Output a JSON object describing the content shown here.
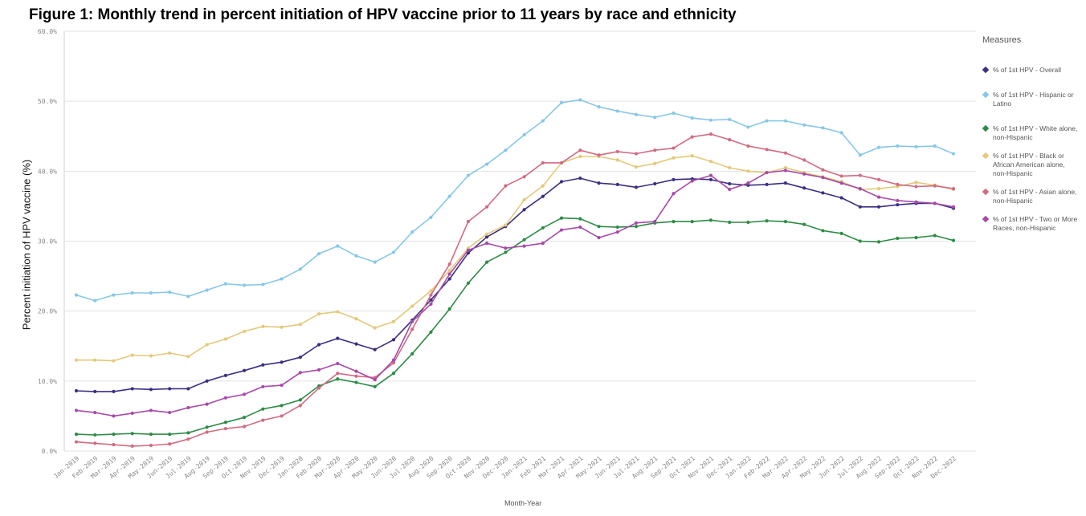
{
  "title": "Figure 1: Monthly trend in percent initiation of HPV vaccine prior to 11 years by race and ethnicity",
  "chart_data": {
    "type": "line",
    "title": "Figure 1: Monthly trend in percent initiation of HPV vaccine prior to 11 years by race and ethnicity",
    "xlabel": "Month-Year",
    "ylabel": "Percent initiation of HPV vaccine (%)",
    "ylim": [
      0,
      60
    ],
    "yticks": [
      "0.0%",
      "10.0%",
      "20.0%",
      "30.0%",
      "40.0%",
      "50.0%",
      "60.0%"
    ],
    "grid": true,
    "legend_title": "Measures",
    "legend_position": "right",
    "x": [
      "Jan-2019",
      "Feb-2019",
      "Mar-2019",
      "Apr-2019",
      "May-2019",
      "Jun-2019",
      "Jul-2019",
      "Aug-2019",
      "Sep-2019",
      "Oct-2019",
      "Nov-2019",
      "Dec-2019",
      "Jan-2020",
      "Feb-2020",
      "Mar-2020",
      "Apr-2020",
      "May-2020",
      "Jun-2020",
      "Jul-2020",
      "Aug-2020",
      "Sep-2020",
      "Oct-2020",
      "Nov-2020",
      "Dec-2020",
      "Jan-2021",
      "Feb-2021",
      "Mar-2021",
      "Apr-2021",
      "May-2021",
      "Jun-2021",
      "Jul-2021",
      "Aug-2021",
      "Sep-2021",
      "Oct-2021",
      "Nov-2021",
      "Dec-2021",
      "Jan-2022",
      "Feb-2022",
      "Mar-2022",
      "Apr-2022",
      "May-2022",
      "Jun-2022",
      "Jul-2022",
      "Aug-2022",
      "Sep-2022",
      "Oct-2022",
      "Nov-2022",
      "Dec-2022"
    ],
    "series": [
      {
        "name": "% of 1st HPV - Overall",
        "color": "#3b2f82",
        "values": [
          8.6,
          8.5,
          8.5,
          8.9,
          8.8,
          8.9,
          8.9,
          10.0,
          10.8,
          11.5,
          12.3,
          12.7,
          13.4,
          15.2,
          16.1,
          15.3,
          14.5,
          15.9,
          18.7,
          21.6,
          24.6,
          28.3,
          30.6,
          32.1,
          34.5,
          36.4,
          38.5,
          39.0,
          38.3,
          38.1,
          37.7,
          38.2,
          38.8,
          38.9,
          38.8,
          38.2,
          38.0,
          38.1,
          38.3,
          37.6,
          36.9,
          36.2,
          34.9,
          34.9,
          35.2,
          35.4,
          35.4,
          34.7
        ]
      },
      {
        "name": "% of 1st HPV - Hispanic or Latino",
        "color": "#87c7e8",
        "values": [
          22.3,
          21.5,
          22.3,
          22.6,
          22.6,
          22.7,
          22.1,
          23.0,
          23.9,
          23.7,
          23.8,
          24.6,
          26.0,
          28.2,
          29.3,
          27.9,
          27.0,
          28.4,
          31.3,
          33.4,
          36.4,
          39.4,
          41.0,
          43.0,
          45.2,
          47.2,
          49.8,
          50.2,
          49.2,
          48.6,
          48.1,
          47.7,
          48.3,
          47.6,
          47.3,
          47.4,
          46.3,
          47.2,
          47.2,
          46.6,
          46.2,
          45.5,
          42.3,
          43.4,
          43.6,
          43.5,
          43.6,
          42.5
        ]
      },
      {
        "name": "% of 1st HPV - White alone, non-Hispanic",
        "color": "#2e8b46",
        "values": [
          2.4,
          2.3,
          2.4,
          2.5,
          2.4,
          2.4,
          2.6,
          3.4,
          4.1,
          4.8,
          6.0,
          6.5,
          7.3,
          9.3,
          10.3,
          9.8,
          9.2,
          11.1,
          13.9,
          17.0,
          20.3,
          24.0,
          27.0,
          28.4,
          30.2,
          31.9,
          33.3,
          33.2,
          32.1,
          32.0,
          32.1,
          32.6,
          32.8,
          32.8,
          33.0,
          32.7,
          32.7,
          32.9,
          32.8,
          32.4,
          31.5,
          31.1,
          30.0,
          29.9,
          30.4,
          30.5,
          30.8,
          30.1
        ]
      },
      {
        "name": "% of 1st HPV - Black or African American alone, non-Hispanic",
        "color": "#e3c97a",
        "values": [
          13.0,
          13.0,
          12.9,
          13.7,
          13.6,
          14.0,
          13.5,
          15.2,
          16.0,
          17.1,
          17.8,
          17.7,
          18.1,
          19.6,
          19.9,
          18.9,
          17.6,
          18.5,
          20.7,
          22.9,
          25.8,
          29.0,
          31.0,
          32.3,
          35.9,
          37.9,
          41.2,
          42.1,
          42.1,
          41.6,
          40.6,
          41.1,
          41.9,
          42.2,
          41.4,
          40.5,
          40.0,
          39.8,
          40.5,
          39.8,
          39.2,
          38.5,
          37.4,
          37.5,
          37.8,
          38.4,
          38.0,
          37.4
        ]
      },
      {
        "name": "% of 1st HPV - Asian alone, non-Hispanic",
        "color": "#d16b82",
        "values": [
          1.3,
          1.1,
          0.9,
          0.7,
          0.8,
          1.0,
          1.7,
          2.7,
          3.2,
          3.5,
          4.4,
          5.0,
          6.5,
          9.0,
          11.1,
          10.7,
          10.5,
          12.6,
          17.4,
          22.3,
          26.7,
          32.8,
          34.9,
          37.9,
          39.2,
          41.2,
          41.2,
          43.0,
          42.3,
          42.8,
          42.5,
          43.0,
          43.3,
          44.9,
          45.3,
          44.5,
          43.6,
          43.1,
          42.6,
          41.6,
          40.2,
          39.3,
          39.4,
          38.8,
          38.1,
          37.8,
          37.9,
          37.5
        ]
      },
      {
        "name": "% of 1st HPV - Two or More Races, non-Hispanic",
        "color": "#a749a8",
        "values": [
          5.8,
          5.5,
          5.0,
          5.4,
          5.8,
          5.5,
          6.2,
          6.7,
          7.6,
          8.1,
          9.2,
          9.4,
          11.2,
          11.6,
          12.5,
          11.4,
          10.2,
          13.0,
          18.5,
          21.0,
          25.3,
          28.7,
          29.7,
          29.0,
          29.3,
          29.7,
          31.6,
          32.0,
          30.5,
          31.3,
          32.6,
          32.8,
          36.8,
          38.6,
          39.4,
          37.4,
          38.3,
          39.8,
          40.1,
          39.6,
          39.1,
          38.3,
          37.5,
          36.3,
          35.8,
          35.6,
          35.4,
          34.9
        ]
      }
    ]
  }
}
